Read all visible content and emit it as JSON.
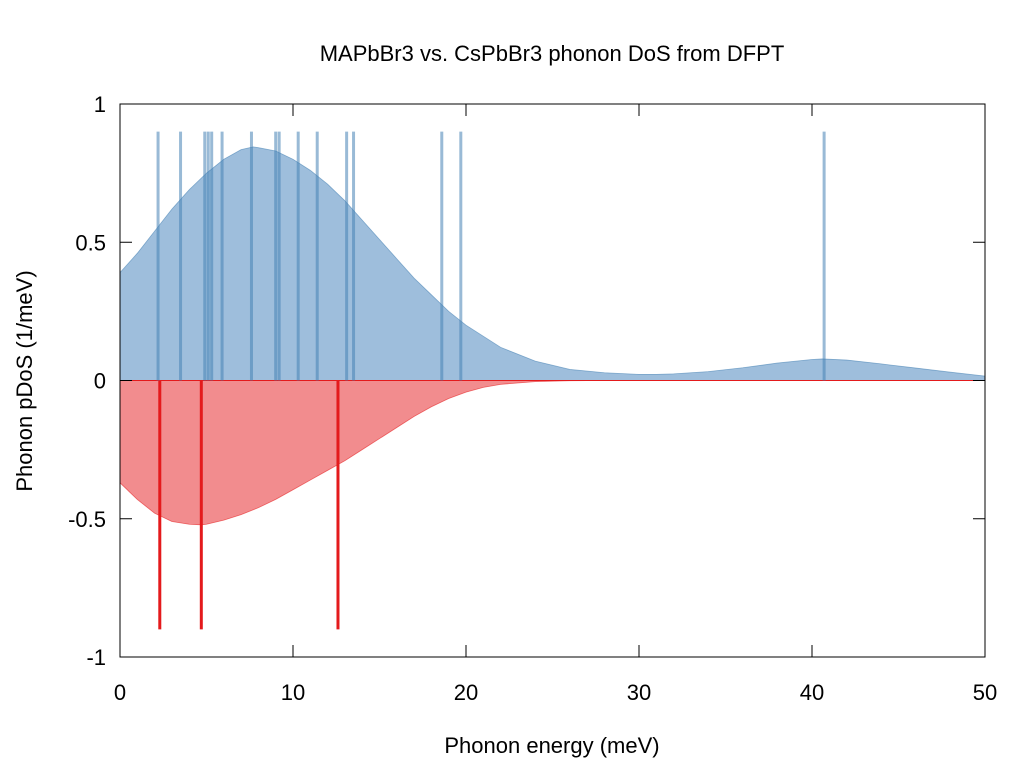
{
  "colors": {
    "mapbbr3": "#4682b4",
    "mapbbr3_fill": "#9ebedc",
    "cspbbr3": "#e41a1c",
    "cspbbr3_fill": "#f28c8e",
    "frame": "#000000",
    "background": "#ffffff"
  },
  "chart_data": {
    "type": "area",
    "title": "MAPbBr3 vs. CsPbBr3 phonon DoS from DFPT",
    "xlabel": "Phonon energy (meV)",
    "ylabel": "Phonon pDoS (1/meV)",
    "xlim": [
      0,
      50
    ],
    "ylim": [
      -1,
      1
    ],
    "x_ticks": [
      0,
      10,
      20,
      30,
      40,
      50
    ],
    "x_tick_labels": [
      "0",
      "10",
      "20",
      "30",
      "40",
      "50"
    ],
    "y_ticks": [
      1,
      0.5,
      0,
      -0.5,
      -1
    ],
    "y_tick_labels": [
      "1",
      "0.5",
      "0",
      "-0.5",
      "-1"
    ],
    "grid": false,
    "legend": "none",
    "series": [
      {
        "key": "mapbbr3",
        "x": [
          0,
          1,
          2,
          3,
          4,
          5,
          6,
          7,
          7.7,
          8,
          9,
          10,
          11,
          12,
          13,
          14,
          15,
          16,
          17,
          18,
          19,
          20,
          22,
          24,
          26,
          28,
          30,
          31,
          32,
          34,
          36,
          38,
          40,
          40.6,
          42,
          44,
          46,
          48,
          50
        ],
        "values": [
          0.39,
          0.46,
          0.54,
          0.62,
          0.69,
          0.75,
          0.8,
          0.835,
          0.845,
          0.842,
          0.83,
          0.8,
          0.76,
          0.71,
          0.65,
          0.58,
          0.51,
          0.44,
          0.37,
          0.31,
          0.25,
          0.2,
          0.12,
          0.07,
          0.04,
          0.028,
          0.022,
          0.022,
          0.024,
          0.032,
          0.046,
          0.063,
          0.076,
          0.078,
          0.074,
          0.06,
          0.045,
          0.03,
          0.016
        ]
      },
      {
        "key": "cspbbr3",
        "x": [
          0,
          1,
          2,
          3,
          4,
          4.7,
          5,
          6,
          7,
          8,
          9,
          10,
          11,
          12,
          13,
          14,
          15,
          16,
          17,
          18,
          19,
          20,
          21,
          22,
          24,
          26,
          28,
          30,
          35,
          40,
          45,
          50
        ],
        "values": [
          -0.37,
          -0.43,
          -0.48,
          -0.51,
          -0.52,
          -0.522,
          -0.52,
          -0.505,
          -0.485,
          -0.46,
          -0.43,
          -0.395,
          -0.36,
          -0.325,
          -0.29,
          -0.25,
          -0.21,
          -0.17,
          -0.13,
          -0.095,
          -0.065,
          -0.042,
          -0.025,
          -0.014,
          -0.004,
          -0.001,
          0,
          0,
          0,
          0,
          0,
          0
        ]
      }
    ],
    "mode_lines": [
      {
        "key": "mapbbr3",
        "amplitude": 0.9,
        "x": [
          2.2,
          3.5,
          4.9,
          5.1,
          5.3,
          5.9,
          7.6,
          9.0,
          9.2,
          10.3,
          11.4,
          13.1,
          13.5,
          18.6,
          19.7,
          40.7
        ]
      },
      {
        "key": "cspbbr3",
        "amplitude": -0.9,
        "x": [
          2.3,
          4.7,
          12.6
        ]
      }
    ]
  }
}
